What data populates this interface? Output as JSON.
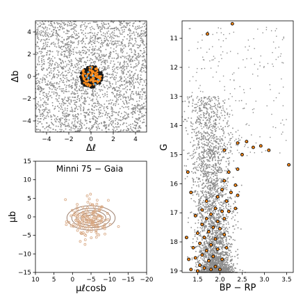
{
  "chart_data": [
    {
      "type": "scatter",
      "id": "sky",
      "title": "",
      "xlabel": "Δℓ",
      "ylabel": "Δb",
      "xlim": [
        -5,
        5
      ],
      "ylim": [
        -5,
        5
      ],
      "xticks": [
        "−4",
        "−2",
        "0",
        "2",
        "4"
      ],
      "yticks": [
        "4",
        "2",
        "0",
        "−2",
        "−4"
      ],
      "xtick_values": [
        -4,
        -2,
        0,
        2,
        4
      ],
      "ytick_values": [
        4,
        2,
        0,
        -2,
        -4
      ],
      "series": [
        {
          "role": "field",
          "color": "#8c8c8c",
          "distribution": "uniform",
          "n": 2600
        },
        {
          "role": "members",
          "color": "#1a1a1a",
          "center": [
            0,
            0
          ],
          "radius": 1.0
        },
        {
          "role": "selected",
          "color": "#ff8c1a",
          "center": [
            0,
            0
          ],
          "radius": 0.9
        }
      ]
    },
    {
      "type": "scatter",
      "id": "proper-motion",
      "title": "Minni 75  −  Gaia",
      "xlabel": "μℓcosb",
      "ylabel": "μb",
      "xlim": [
        10,
        -20
      ],
      "ylim": [
        -15,
        15
      ],
      "xticks": [
        "10",
        "5",
        "0",
        "−5",
        "−10",
        "−15",
        "−20"
      ],
      "yticks": [
        "15",
        "10",
        "5",
        "0",
        "−5",
        "−10",
        "−15"
      ],
      "xtick_values": [
        10,
        5,
        0,
        -5,
        -10,
        -15,
        -20
      ],
      "ytick_values": [
        15,
        10,
        5,
        0,
        -5,
        -10,
        -15
      ],
      "series": [
        {
          "role": "stars",
          "color": "#d8a883",
          "center": [
            -5,
            -0.5
          ],
          "spread": [
            2.5,
            2.2
          ],
          "n": 160
        },
        {
          "role": "density-contours",
          "color": "#8c6a55",
          "center": [
            -5,
            -0.3
          ],
          "radii": [
            [
              6.5,
              3.3
            ],
            [
              5.2,
              2.6
            ],
            [
              4.0,
              2.0
            ],
            [
              2.8,
              1.4
            ],
            [
              1.6,
              0.8
            ]
          ]
        }
      ]
    },
    {
      "type": "scatter",
      "id": "cmd",
      "title": "",
      "xlabel": "BP − RP",
      "ylabel": "G",
      "xlim": [
        1.15,
        3.65
      ],
      "ylim": [
        19.05,
        10.4
      ],
      "xticks": [
        "1.5",
        "2.0",
        "2.5",
        "3.0",
        "3.5"
      ],
      "yticks": [
        "11",
        "12",
        "13",
        "14",
        "15",
        "16",
        "17",
        "18",
        "19"
      ],
      "xtick_values": [
        1.5,
        2.0,
        2.5,
        3.0,
        3.5
      ],
      "ytick_values": [
        11,
        12,
        13,
        14,
        15,
        16,
        17,
        18,
        19
      ],
      "series": [
        {
          "role": "field",
          "color": "#8c8c8c"
        },
        {
          "role": "members",
          "color": "#ff8c1a",
          "edgecolor": "#000000",
          "points": [
            [
              2.28,
              10.5
            ],
            [
              1.72,
              10.85
            ],
            [
              3.55,
              15.35
            ],
            [
              2.92,
              14.7
            ],
            [
              2.6,
              14.55
            ],
            [
              3.1,
              14.85
            ],
            [
              2.75,
              14.75
            ],
            [
              2.4,
              14.6
            ],
            [
              2.1,
              14.85
            ],
            [
              2.5,
              15.0
            ],
            [
              1.28,
              15.6
            ],
            [
              2.2,
              15.6
            ],
            [
              2.4,
              15.5
            ],
            [
              2.1,
              15.9
            ],
            [
              2.35,
              16.05
            ],
            [
              2.05,
              16.2
            ],
            [
              2.25,
              16.3
            ],
            [
              1.95,
              16.45
            ],
            [
              2.15,
              16.6
            ],
            [
              1.35,
              16.3
            ],
            [
              2.4,
              16.4
            ],
            [
              1.9,
              16.85
            ],
            [
              2.05,
              16.95
            ],
            [
              1.8,
              17.05
            ],
            [
              2.2,
              16.95
            ],
            [
              1.7,
              17.2
            ],
            [
              1.95,
              17.3
            ],
            [
              2.1,
              17.2
            ],
            [
              1.45,
              17.1
            ],
            [
              1.6,
              17.4
            ],
            [
              1.85,
              17.5
            ],
            [
              2.0,
              17.55
            ],
            [
              1.75,
              17.65
            ],
            [
              1.5,
              17.7
            ],
            [
              1.65,
              17.85
            ],
            [
              1.9,
              17.9
            ],
            [
              2.1,
              17.75
            ],
            [
              1.55,
              18.05
            ],
            [
              1.8,
              18.1
            ],
            [
              1.4,
              18.2
            ],
            [
              1.7,
              18.3
            ],
            [
              1.95,
              18.25
            ],
            [
              1.6,
              18.45
            ],
            [
              1.85,
              18.5
            ],
            [
              1.45,
              18.55
            ],
            [
              1.75,
              18.65
            ],
            [
              2.05,
              18.6
            ],
            [
              1.55,
              18.8
            ],
            [
              1.65,
              18.9
            ],
            [
              1.9,
              18.85
            ],
            [
              1.35,
              18.95
            ],
            [
              1.8,
              18.95
            ],
            [
              1.5,
              19.0
            ],
            [
              1.25,
              17.85
            ],
            [
              1.3,
              18.6
            ],
            [
              2.0,
              18.95
            ],
            [
              2.35,
              16.85
            ],
            [
              1.7,
              16.6
            ],
            [
              1.6,
              16.9
            ],
            [
              2.15,
              18.2
            ]
          ]
        }
      ]
    }
  ]
}
